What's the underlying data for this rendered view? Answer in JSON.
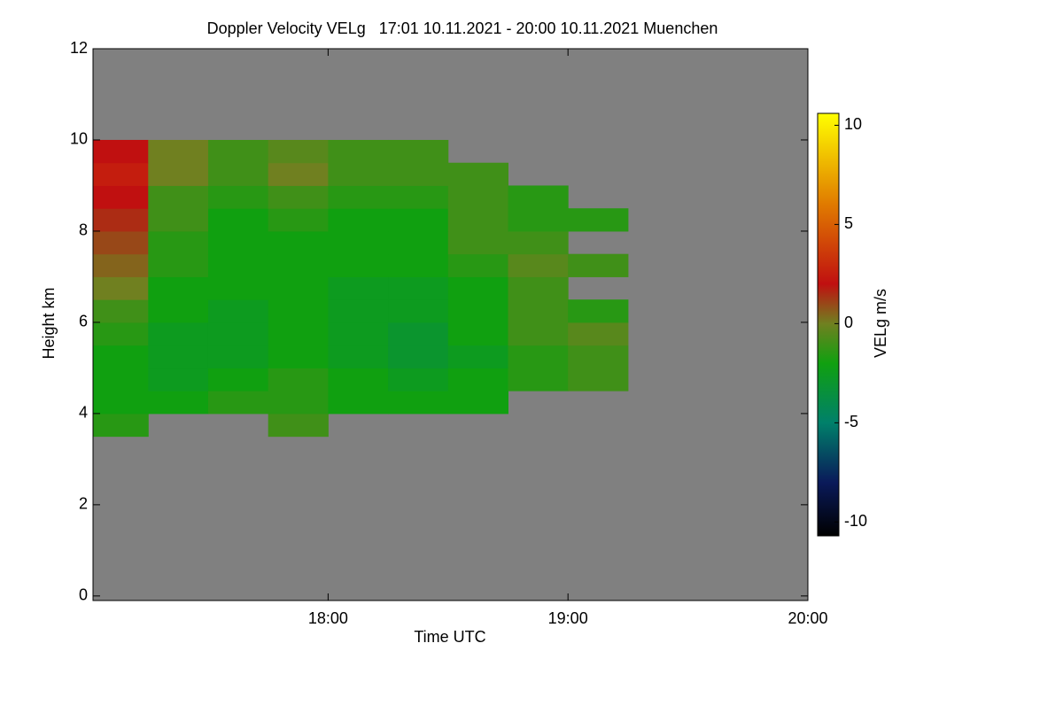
{
  "chart_data": {
    "type": "heatmap",
    "title": "Doppler Velocity VELg   17:01 10.11.2021 - 20:00 10.11.2021 Muenchen",
    "xlabel": "Time UTC",
    "ylabel": "Height km",
    "colorbar_label": "VELg m/s",
    "xlim": [
      17.02,
      20.0
    ],
    "ylim": [
      -0.1,
      12
    ],
    "xticks": [
      {
        "value": 18,
        "label": "18:00"
      },
      {
        "value": 19,
        "label": "19:00"
      },
      {
        "value": 20,
        "label": "20:00"
      }
    ],
    "yticks": [
      0,
      2,
      4,
      6,
      8,
      10,
      12
    ],
    "clim": [
      -10.7,
      10.6
    ],
    "cticks": [
      -10,
      -5,
      0,
      5,
      10
    ],
    "background": "#808080",
    "colormap": [
      {
        "value": -10.7,
        "color": "#000000"
      },
      {
        "value": -8,
        "color": "#0a1a5a"
      },
      {
        "value": -5,
        "color": "#00806a"
      },
      {
        "value": -2,
        "color": "#10a010"
      },
      {
        "value": 0,
        "color": "#708020"
      },
      {
        "value": 2,
        "color": "#c01010"
      },
      {
        "value": 6,
        "color": "#e07a00"
      },
      {
        "value": 10.6,
        "color": "#ffff00"
      }
    ],
    "x_bins": [
      17.02,
      17.25,
      17.5,
      17.75,
      18.0,
      18.25,
      18.5,
      18.75,
      19.0,
      19.25,
      19.5,
      19.75,
      20.0
    ],
    "y_bins": [
      3.5,
      4,
      4.5,
      5,
      5.5,
      6,
      6.5,
      7,
      7.5,
      8,
      8.5,
      9,
      9.5,
      10,
      10.5
    ],
    "z": [
      [
        -1.5,
        null,
        null,
        -1,
        null,
        null,
        null,
        null,
        null,
        null,
        null,
        null
      ],
      [
        -2,
        -2,
        -1.5,
        -1.5,
        -2,
        -2,
        -2,
        null,
        null,
        null,
        null,
        null
      ],
      [
        -2,
        -2.5,
        -2,
        -1.5,
        -2,
        -2.5,
        -2,
        -1.5,
        -1,
        null,
        null,
        null
      ],
      [
        -2,
        -2.5,
        -2.5,
        -2,
        -2.5,
        -3,
        -2.5,
        -1.5,
        -1,
        null,
        null,
        null
      ],
      [
        -1.5,
        -2.5,
        -2.5,
        -2,
        -2.5,
        -3,
        -2,
        -1,
        -0.5,
        null,
        null,
        null
      ],
      [
        -1,
        -2,
        -2.5,
        -2,
        -2.5,
        -2.5,
        -2,
        -1,
        -1.5,
        null,
        null,
        null
      ],
      [
        0,
        -2,
        -2,
        -2,
        -2.5,
        -2.5,
        -2,
        -1,
        null,
        null,
        null,
        null
      ],
      [
        0.5,
        -1.5,
        -2,
        -2,
        -2,
        -2,
        -1.5,
        -0.5,
        -1,
        null,
        null,
        null
      ],
      [
        1,
        -1.5,
        -2,
        -2,
        -2,
        -2,
        -1,
        -1,
        null,
        null,
        null,
        null
      ],
      [
        1.5,
        -1,
        -2,
        -1.5,
        -2,
        -2,
        -1,
        -1.5,
        -1.5,
        null,
        null,
        null
      ],
      [
        2,
        -1,
        -1.5,
        -1,
        -1.5,
        -1.5,
        -1,
        -1.5,
        null,
        null,
        null,
        null
      ],
      [
        2.5,
        0,
        -1,
        0,
        -1,
        -1,
        -1,
        null,
        null,
        null,
        null,
        null
      ],
      [
        2,
        0,
        -1,
        -0.5,
        -1,
        -1,
        null,
        null,
        null,
        null,
        null,
        null
      ],
      [
        null,
        null,
        null,
        null,
        null,
        null,
        null,
        null,
        null,
        null,
        null,
        null
      ]
    ]
  }
}
